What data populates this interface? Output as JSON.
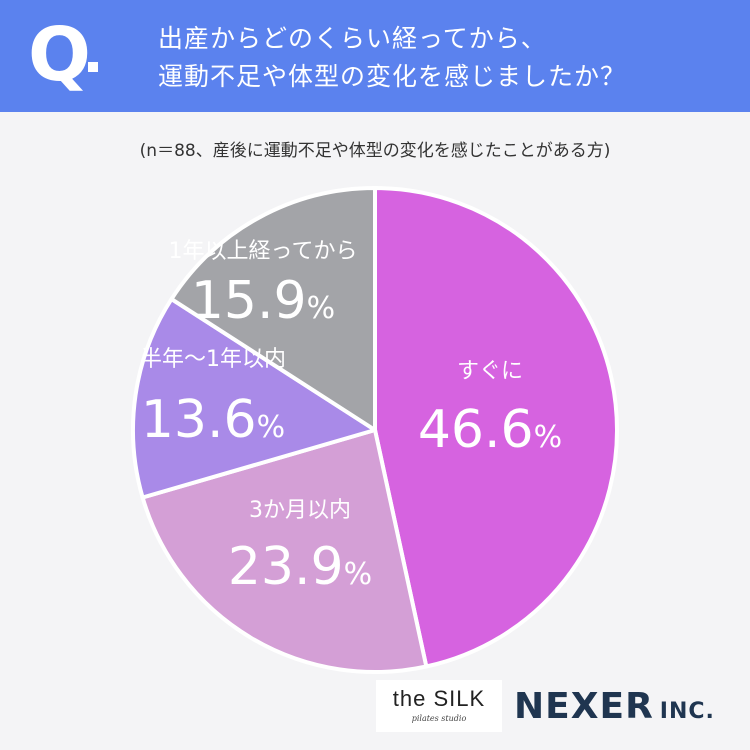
{
  "header": {
    "q_mark": "Q",
    "question_line1": "出産からどのくらい経ってから、",
    "question_line2": "運動不足や体型の変化を感じましたか？",
    "bg_color": "#5b82ee"
  },
  "sample_note": "(n＝88、産後に運動不足や体型の変化を感じたことがある方)",
  "chart_data": {
    "type": "pie",
    "categories": [
      "すぐに",
      "3か月以内",
      "半年〜1年以内",
      "1年以上経ってから"
    ],
    "values": [
      46.6,
      23.9,
      13.6,
      15.9
    ],
    "value_labels": [
      "46.6",
      "23.9",
      "13.6",
      "15.9"
    ],
    "unit": "%",
    "colors": [
      "#d663e0",
      "#d49fd6",
      "#a98ae8",
      "#a3a4a8"
    ],
    "start_angle": "12 o'clock",
    "direction": "clockwise"
  },
  "logos": {
    "silk_main": "the SILK",
    "silk_sub": "pilates studio",
    "nexer": "NEXER",
    "nexer_suffix": "INC."
  }
}
